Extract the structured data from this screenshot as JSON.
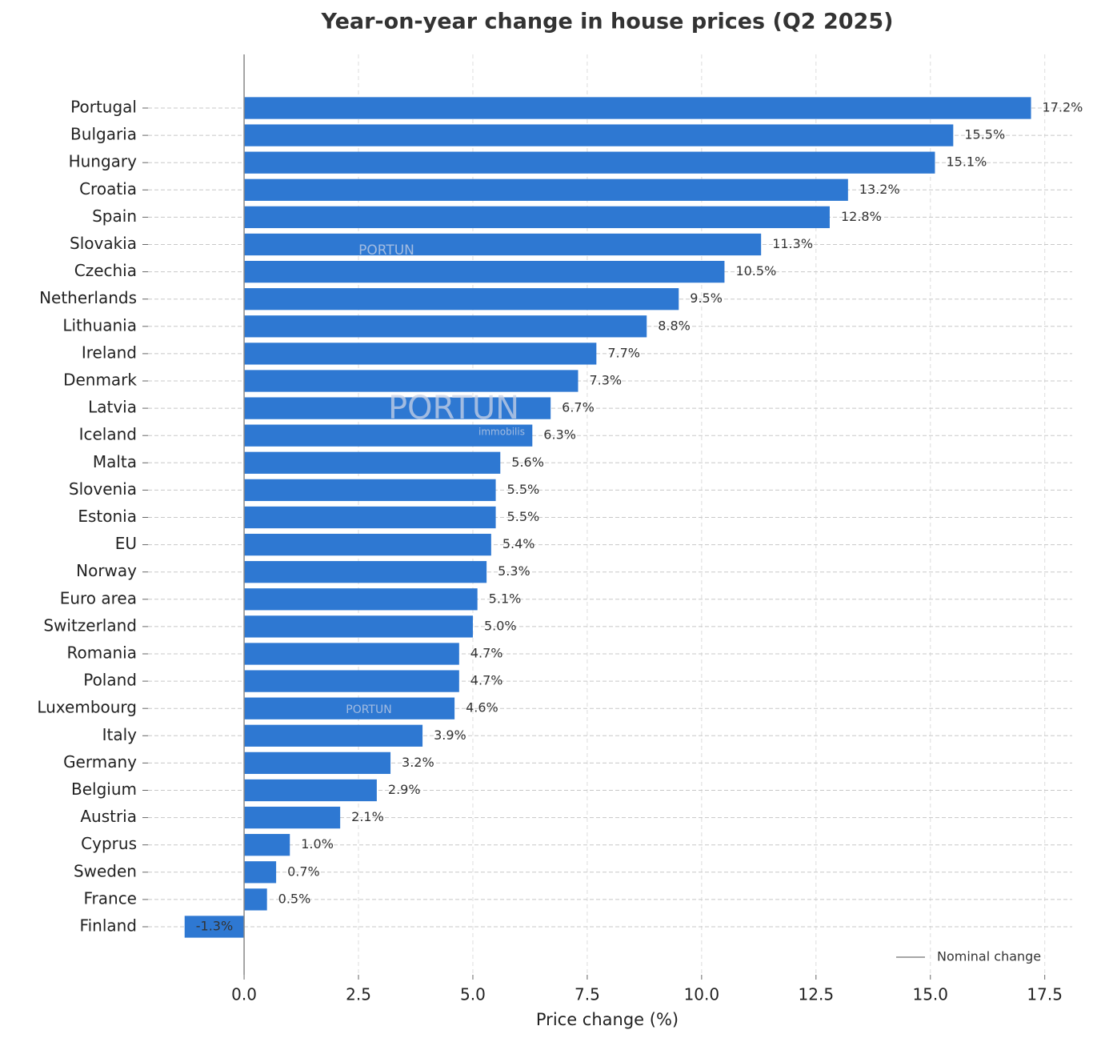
{
  "chart_data": {
    "type": "barh",
    "title": "Year-on-year change in house prices (Q2 2025)",
    "xlabel": "Price change (%)",
    "categories": [
      "Portugal",
      "Bulgaria",
      "Hungary",
      "Croatia",
      "Spain",
      "Slovakia",
      "Czechia",
      "Netherlands",
      "Lithuania",
      "Ireland",
      "Denmark",
      "Latvia",
      "Iceland",
      "Malta",
      "Slovenia",
      "Estonia",
      "EU",
      "Norway",
      "Euro area",
      "Switzerland",
      "Romania",
      "Poland",
      "Luxembourg",
      "Italy",
      "Germany",
      "Belgium",
      "Austria",
      "Cyprus",
      "Sweden",
      "France",
      "Finland"
    ],
    "series": [
      {
        "name": "Nominal change",
        "color": "#2e78d2",
        "values": [
          17.2,
          15.5,
          15.1,
          13.2,
          12.8,
          11.3,
          10.5,
          9.5,
          8.8,
          7.7,
          7.3,
          6.7,
          6.3,
          5.6,
          5.5,
          5.5,
          5.4,
          5.3,
          5.1,
          5.0,
          4.7,
          4.7,
          4.6,
          3.9,
          3.2,
          2.9,
          2.1,
          1.0,
          0.7,
          0.5,
          -1.3
        ],
        "value_labels": [
          "17.2%",
          "15.5%",
          "15.1%",
          "13.2%",
          "12.8%",
          "11.3%",
          "10.5%",
          "9.5%",
          "8.8%",
          "7.7%",
          "7.3%",
          "6.7%",
          "6.3%",
          "5.6%",
          "5.5%",
          "5.5%",
          "5.4%",
          "5.3%",
          "5.1%",
          "5.0%",
          "4.7%",
          "4.7%",
          "4.6%",
          "3.9%",
          "3.2%",
          "2.9%",
          "2.1%",
          "1.0%",
          "0.7%",
          "0.5%",
          "-1.3%"
        ]
      }
    ],
    "legend_marker_color": "#888888",
    "legend_position": "lower right",
    "xlim": [
      -2.1,
      18.1
    ],
    "xticks": [
      {
        "value": 0,
        "label": "0.0"
      },
      2.5,
      {
        "value": 5,
        "label": "5.0"
      },
      7.5,
      {
        "value": 10,
        "label": "10.0"
      },
      12.5,
      {
        "value": 15,
        "label": "15.0"
      },
      17.5
    ],
    "grid": true,
    "watermarks": [
      "PORTUN",
      "PORTUN",
      "immobilis",
      "PORTUN"
    ]
  }
}
